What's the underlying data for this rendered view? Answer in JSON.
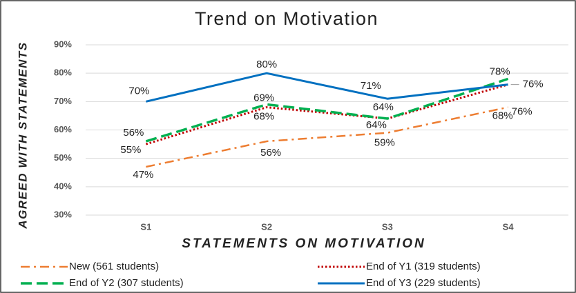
{
  "chart_data": {
    "type": "line",
    "title": "Trend on Motivation",
    "xlabel": "STATEMENTS ON MOTIVATION",
    "ylabel": "AGREED WITH STATEMENTS",
    "categories": [
      "S1",
      "S2",
      "S3",
      "S4"
    ],
    "ylim": [
      30,
      90
    ],
    "yticks": [
      {
        "value": 30,
        "label": "30%"
      },
      {
        "value": 40,
        "label": "40%"
      },
      {
        "value": 50,
        "label": "50%"
      },
      {
        "value": 60,
        "label": "60%"
      },
      {
        "value": 70,
        "label": "70%"
      },
      {
        "value": 80,
        "label": "80%"
      },
      {
        "value": 90,
        "label": "90%"
      }
    ],
    "grid": true,
    "legend": "bottom",
    "series": [
      {
        "name": "New (561 students)",
        "color": "#ed7d31",
        "linestyle": "dashdot",
        "values": [
          47,
          56,
          59,
          68
        ],
        "value_labels": [
          "47%",
          "56%",
          "59%",
          "68%"
        ]
      },
      {
        "name": "End of Y1 (319 students)",
        "color": "#c00000",
        "linestyle": "dotted",
        "values": [
          55,
          68,
          64,
          76
        ],
        "value_labels": [
          "55%",
          "68%",
          "64%",
          "76%"
        ]
      },
      {
        "name": "End of Y2 (307 students)",
        "color": "#00b050",
        "linestyle": "dashed",
        "values": [
          56,
          69,
          64,
          78
        ],
        "value_labels": [
          "56%",
          "69%",
          "64%",
          "78%"
        ]
      },
      {
        "name": "End of Y3 (229 students)",
        "color": "#0070c0",
        "linestyle": "solid",
        "values": [
          70,
          80,
          71,
          76
        ],
        "value_labels": [
          "70%",
          "80%",
          "71%",
          "76%"
        ]
      }
    ]
  }
}
